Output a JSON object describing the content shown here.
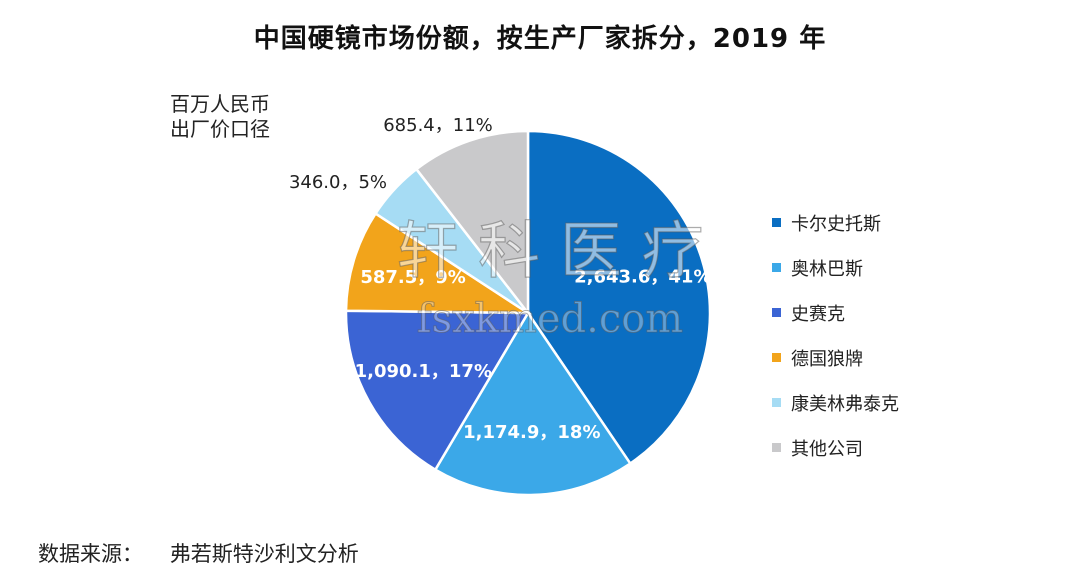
{
  "chart_data": {
    "type": "pie",
    "title": "中国硬镜市场份额，按生产厂家拆分，2019 年",
    "unit_label": [
      "百万人民币",
      "出厂价口径"
    ],
    "slices": [
      {
        "label": "卡尔史托斯",
        "value": 2643.6,
        "percent": 41,
        "data_label": "2,643.6，41%",
        "color": "#0a6ec2"
      },
      {
        "label": "奥林巴斯",
        "value": 1174.9,
        "percent": 18,
        "data_label": "1,174.9，18%",
        "color": "#3ba8e8"
      },
      {
        "label": "史赛克",
        "value": 1090.1,
        "percent": 17,
        "data_label": "1,090.1，17%",
        "color": "#3b64d4"
      },
      {
        "label": "德国狼牌",
        "value": 587.5,
        "percent": 9,
        "data_label": "587.5，9%",
        "color": "#f2a41b"
      },
      {
        "label": "康美林弗泰克",
        "value": 346.0,
        "percent": 5,
        "data_label": "346.0，5%",
        "color": "#a6dcf4"
      },
      {
        "label": "其他公司",
        "value": 685.4,
        "percent": 11,
        "data_label": "685.4，11%",
        "color": "#c9c9cb"
      }
    ],
    "legend_position": "right"
  },
  "source_text": "数据来源：    弗若斯特沙利文分析",
  "watermark": {
    "line1": "轩 科 医 疗",
    "line2": "fsxkmed.com"
  }
}
